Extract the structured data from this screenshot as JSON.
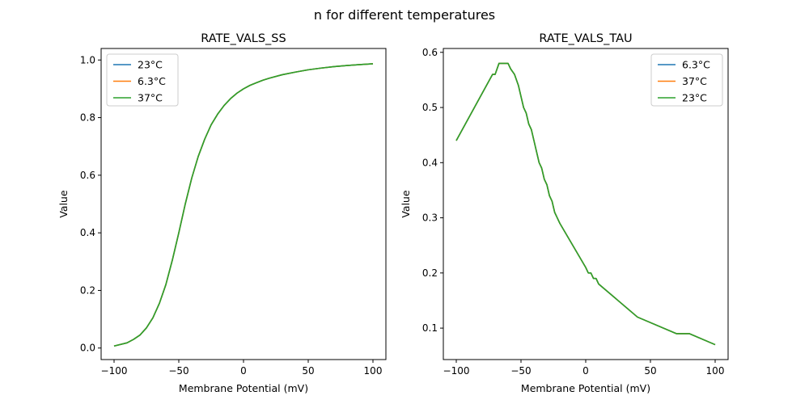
{
  "figure_title": "n for different temperatures",
  "chart_data": [
    {
      "type": "line",
      "title": "RATE_VALS_SS",
      "xlabel": "Membrane Potential (mV)",
      "ylabel": "Value",
      "xlim": [
        -110,
        110
      ],
      "ylim": [
        -0.04,
        1.04
      ],
      "xticks": [
        -100,
        -50,
        0,
        50,
        100
      ],
      "yticks": [
        0.0,
        0.2,
        0.4,
        0.6,
        0.8,
        1.0
      ],
      "xtick_labels": [
        "−100",
        "−50",
        "0",
        "50",
        "100"
      ],
      "ytick_labels": [
        "0.0",
        "0.2",
        "0.4",
        "0.6",
        "0.8",
        "1.0"
      ],
      "grid": false,
      "legend_position": "upper-left",
      "x": [
        -100,
        -90,
        -85,
        -80,
        -75,
        -70,
        -65,
        -60,
        -55,
        -50,
        -45,
        -40,
        -35,
        -30,
        -25,
        -20,
        -15,
        -10,
        -5,
        0,
        5,
        10,
        15,
        20,
        30,
        40,
        50,
        60,
        70,
        80,
        90,
        100
      ],
      "series": [
        {
          "name": "23°C",
          "color": "#1f77b4",
          "y": [
            0.007,
            0.018,
            0.03,
            0.045,
            0.07,
            0.105,
            0.155,
            0.22,
            0.305,
            0.4,
            0.5,
            0.59,
            0.665,
            0.725,
            0.775,
            0.812,
            0.842,
            0.866,
            0.885,
            0.9,
            0.912,
            0.921,
            0.93,
            0.937,
            0.949,
            0.958,
            0.966,
            0.972,
            0.977,
            0.981,
            0.984,
            0.987
          ]
        },
        {
          "name": "6.3°C",
          "color": "#ff7f0e",
          "y": [
            0.007,
            0.018,
            0.03,
            0.045,
            0.07,
            0.105,
            0.155,
            0.22,
            0.305,
            0.4,
            0.5,
            0.59,
            0.665,
            0.725,
            0.775,
            0.812,
            0.842,
            0.866,
            0.885,
            0.9,
            0.912,
            0.921,
            0.93,
            0.937,
            0.949,
            0.958,
            0.966,
            0.972,
            0.977,
            0.981,
            0.984,
            0.987
          ]
        },
        {
          "name": "37°C",
          "color": "#2ca02c",
          "y": [
            0.007,
            0.018,
            0.03,
            0.045,
            0.07,
            0.105,
            0.155,
            0.22,
            0.305,
            0.4,
            0.5,
            0.59,
            0.665,
            0.725,
            0.775,
            0.812,
            0.842,
            0.866,
            0.885,
            0.9,
            0.912,
            0.921,
            0.93,
            0.937,
            0.949,
            0.958,
            0.966,
            0.972,
            0.977,
            0.981,
            0.984,
            0.987
          ]
        }
      ]
    },
    {
      "type": "line",
      "title": "RATE_VALS_TAU",
      "xlabel": "Membrane Potential (mV)",
      "ylabel": "Value",
      "xlim": [
        -110,
        110
      ],
      "ylim": [
        0.043,
        0.607
      ],
      "xticks": [
        -100,
        -50,
        0,
        50,
        100
      ],
      "yticks": [
        0.1,
        0.2,
        0.3,
        0.4,
        0.5,
        0.6
      ],
      "xtick_labels": [
        "−100",
        "−50",
        "0",
        "50",
        "100"
      ],
      "ytick_labels": [
        "0.1",
        "0.2",
        "0.3",
        "0.4",
        "0.5",
        "0.6"
      ],
      "grid": false,
      "legend_position": "upper-right",
      "x": [
        -100,
        -72,
        -70,
        -67,
        -65,
        -62,
        -60,
        -58,
        -55,
        -52,
        -50,
        -48,
        -46,
        -44,
        -42,
        -40,
        -38,
        -36,
        -34,
        -32,
        -30,
        -28,
        -26,
        -24,
        -22,
        -20,
        0,
        2,
        4,
        6,
        8,
        10,
        40,
        70,
        80,
        100
      ],
      "series": [
        {
          "name": "6.3°C",
          "color": "#1f77b4",
          "y": [
            0.44,
            0.56,
            0.56,
            0.58,
            0.58,
            0.58,
            0.58,
            0.57,
            0.56,
            0.54,
            0.52,
            0.5,
            0.49,
            0.47,
            0.46,
            0.44,
            0.42,
            0.4,
            0.39,
            0.37,
            0.36,
            0.34,
            0.33,
            0.31,
            0.3,
            0.29,
            0.21,
            0.2,
            0.2,
            0.19,
            0.19,
            0.18,
            0.12,
            0.09,
            0.09,
            0.07
          ]
        },
        {
          "name": "37°C",
          "color": "#ff7f0e",
          "y": [
            0.44,
            0.56,
            0.56,
            0.58,
            0.58,
            0.58,
            0.58,
            0.57,
            0.56,
            0.54,
            0.52,
            0.5,
            0.49,
            0.47,
            0.46,
            0.44,
            0.42,
            0.4,
            0.39,
            0.37,
            0.36,
            0.34,
            0.33,
            0.31,
            0.3,
            0.29,
            0.21,
            0.2,
            0.2,
            0.19,
            0.19,
            0.18,
            0.12,
            0.09,
            0.09,
            0.07
          ]
        },
        {
          "name": "23°C",
          "color": "#2ca02c",
          "y": [
            0.44,
            0.56,
            0.56,
            0.58,
            0.58,
            0.58,
            0.58,
            0.57,
            0.56,
            0.54,
            0.52,
            0.5,
            0.49,
            0.47,
            0.46,
            0.44,
            0.42,
            0.4,
            0.39,
            0.37,
            0.36,
            0.34,
            0.33,
            0.31,
            0.3,
            0.29,
            0.21,
            0.2,
            0.2,
            0.19,
            0.19,
            0.18,
            0.12,
            0.09,
            0.09,
            0.07
          ]
        }
      ]
    }
  ]
}
